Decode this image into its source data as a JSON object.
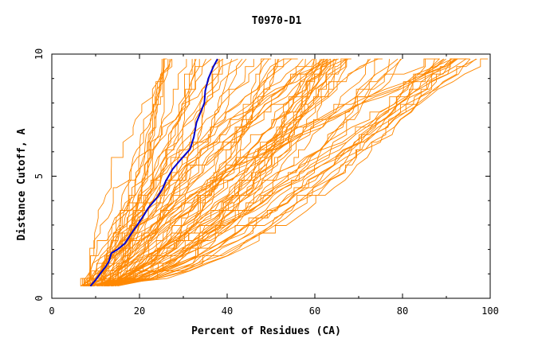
{
  "chart_data": {
    "type": "line",
    "title": "T0970-D1",
    "xlabel": "Percent of Residues (CA)",
    "ylabel": "Distance Cutoff, A",
    "xlim": [
      0,
      100
    ],
    "ylim": [
      0,
      10
    ],
    "x_ticks": [
      0,
      20,
      40,
      60,
      80,
      100
    ],
    "y_ticks": [
      0,
      5,
      10
    ],
    "x_tick_labels": [
      "0",
      "20",
      "40",
      "60",
      "80",
      "100"
    ],
    "y_tick_labels": [
      "0",
      "5",
      "10"
    ],
    "grid": false,
    "highlight_series": {
      "color": "#0000cc",
      "points": [
        [
          8.8,
          0.5
        ],
        [
          10,
          0.75
        ],
        [
          11,
          1.0
        ],
        [
          12.3,
          1.3
        ],
        [
          13,
          1.5
        ],
        [
          13.6,
          1.85
        ],
        [
          15,
          2.0
        ],
        [
          16.7,
          2.25
        ],
        [
          18.5,
          2.75
        ],
        [
          19.5,
          3.0
        ],
        [
          21,
          3.4
        ],
        [
          22,
          3.7
        ],
        [
          24.1,
          4.15
        ],
        [
          25.3,
          4.5
        ],
        [
          26,
          4.8
        ],
        [
          27.6,
          5.3
        ],
        [
          29,
          5.6
        ],
        [
          30,
          5.8
        ],
        [
          31.5,
          6.1
        ],
        [
          32.4,
          6.6
        ],
        [
          33,
          7.2
        ],
        [
          34.8,
          8.0
        ],
        [
          35,
          8.5
        ],
        [
          35.7,
          9.0
        ],
        [
          36.9,
          9.5
        ],
        [
          37.8,
          9.8
        ]
      ]
    },
    "models": {
      "color": "#ff8800",
      "count": 90,
      "x_range_at_0.5A": [
        6.5,
        14.5
      ],
      "x_range_at_9.8A": [
        25,
        100
      ]
    }
  }
}
